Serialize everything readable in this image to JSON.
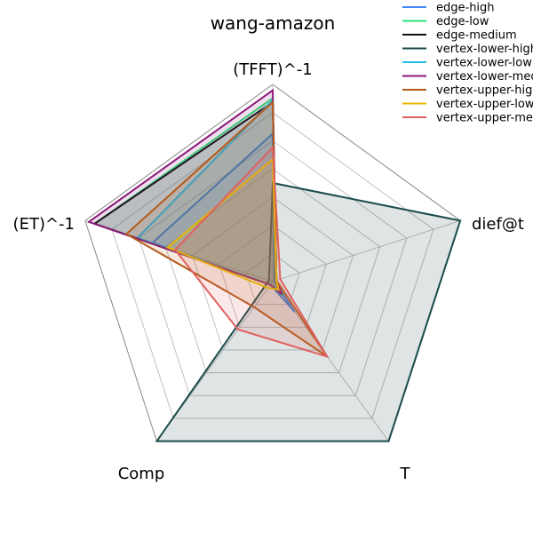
{
  "chart_data": {
    "type": "radar",
    "title": "wang-amazon",
    "axes": [
      "(TFFT)^-1",
      "dief@t",
      "T",
      "Comp",
      "(ET)^-1"
    ],
    "range": [
      0,
      1
    ],
    "grid_levels": 7,
    "grid": true,
    "legend_placement": "top-right",
    "series": [
      {
        "name": "edge-high",
        "color": "#4285f4",
        "values": [
          0.75,
          0.01,
          0.19,
          0.02,
          0.64
        ]
      },
      {
        "name": "edge-low",
        "color": "#2ee27b",
        "values": [
          0.93,
          0.02,
          0.09,
          0.02,
          0.95
        ]
      },
      {
        "name": "edge-medium",
        "color": "#111111",
        "values": [
          0.91,
          0.02,
          0.07,
          0.02,
          0.95
        ]
      },
      {
        "name": "vertex-lower-high",
        "color": "#1a4a4a",
        "values": [
          0.5,
          1.0,
          1.0,
          1.0,
          0.02
        ]
      },
      {
        "name": "vertex-lower-low",
        "color": "#20c0e6",
        "values": [
          0.92,
          0.02,
          0.07,
          0.02,
          0.72
        ]
      },
      {
        "name": "vertex-lower-medium",
        "color": "#8b1a7a",
        "values": [
          0.97,
          0.02,
          0.08,
          0.02,
          0.98
        ]
      },
      {
        "name": "vertex-upper-high",
        "color": "#b35a1a",
        "values": [
          0.91,
          0.02,
          0.47,
          0.16,
          0.78
        ]
      },
      {
        "name": "vertex-upper-low",
        "color": "#e6b800",
        "values": [
          0.62,
          0.02,
          0.05,
          0.04,
          0.56
        ]
      },
      {
        "name": "vertex-upper-medium",
        "color": "#e06060",
        "values": [
          0.68,
          0.04,
          0.47,
          0.3,
          0.52
        ]
      }
    ]
  }
}
